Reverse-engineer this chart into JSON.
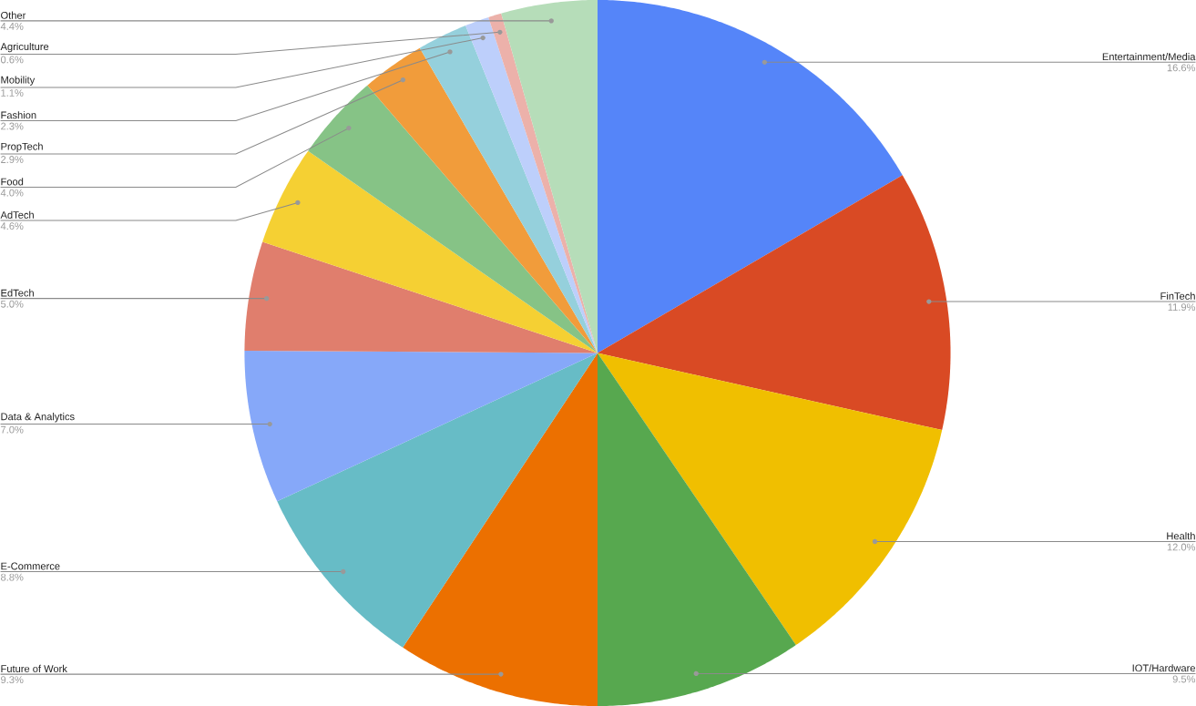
{
  "chart_data": {
    "type": "pie",
    "categories": [
      "Entertainment/Media",
      "FinTech",
      "Health",
      "IOT/Hardware",
      "Future of Work",
      "E-Commerce",
      "Data & Analytics",
      "EdTech",
      "AdTech",
      "Food",
      "PropTech",
      "Fashion",
      "Mobility",
      "Agriculture",
      "Other"
    ],
    "values": [
      16.6,
      11.9,
      12.0,
      9.5,
      9.3,
      8.8,
      7.0,
      5.0,
      4.6,
      4.0,
      2.9,
      2.3,
      1.1,
      0.6,
      4.4
    ],
    "value_labels": [
      "16.6%",
      "11.9%",
      "12.0%",
      "9.5%",
      "9.3%",
      "8.8%",
      "7.0%",
      "5.0%",
      "4.6%",
      "4.0%",
      "2.9%",
      "2.3%",
      "1.1%",
      "0.6%",
      "4.4%"
    ],
    "colors": [
      "#5585f9",
      "#d94a24",
      "#f0bf00",
      "#57a84f",
      "#ec7000",
      "#67bcc6",
      "#86a8f9",
      "#e07e6d",
      "#f5d033",
      "#86c386",
      "#f19c3b",
      "#95d0dc",
      "#bdcffb",
      "#ecb1aa",
      "#b6ddb9"
    ]
  }
}
